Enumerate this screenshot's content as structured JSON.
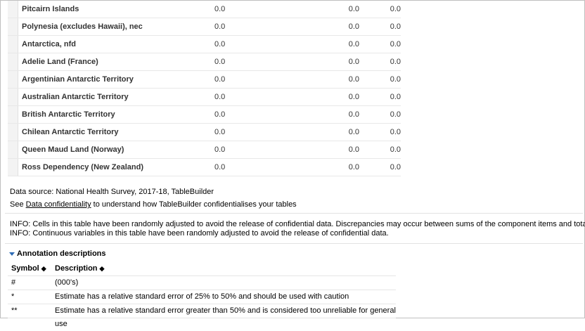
{
  "rows": [
    {
      "label": "Pitcairn Islands",
      "c1": "0.0",
      "c2": "0.0",
      "c3": "0.0"
    },
    {
      "label": "Polynesia (excludes Hawaii), nec",
      "c1": "0.0",
      "c2": "0.0",
      "c3": "0.0"
    },
    {
      "label": "Antarctica, nfd",
      "c1": "0.0",
      "c2": "0.0",
      "c3": "0.0"
    },
    {
      "label": "Adelie Land (France)",
      "c1": "0.0",
      "c2": "0.0",
      "c3": "0.0"
    },
    {
      "label": "Argentinian Antarctic Territory",
      "c1": "0.0",
      "c2": "0.0",
      "c3": "0.0"
    },
    {
      "label": "Australian Antarctic Territory",
      "c1": "0.0",
      "c2": "0.0",
      "c3": "0.0"
    },
    {
      "label": "British Antarctic Territory",
      "c1": "0.0",
      "c2": "0.0",
      "c3": "0.0"
    },
    {
      "label": "Chilean Antarctic Territory",
      "c1": "0.0",
      "c2": "0.0",
      "c3": "0.0"
    },
    {
      "label": "Queen Maud Land (Norway)",
      "c1": "0.0",
      "c2": "0.0",
      "c3": "0.0"
    },
    {
      "label": "Ross Dependency (New Zealand)",
      "c1": "0.0",
      "c2": "0.0",
      "c3": "0.0"
    }
  ],
  "footer": {
    "data_source": "Data source: National Health Survey, 2017-18, TableBuilder",
    "see_prefix": "See ",
    "see_link": "Data confidentiality",
    "see_suffix": " to understand how TableBuilder confidentialises your tables",
    "info1": "INFO: Cells in this table have been randomly adjusted to avoid the release of confidential data. Discrepancies may occur between sums of the component items and totals.",
    "info2": "INFO: Continuous variables in this table have been randomly adjusted to avoid the release of confidential data."
  },
  "annotations": {
    "heading": "Annotation descriptions",
    "col_symbol": "Symbol",
    "col_description": "Description",
    "sort_glyph": "◆",
    "items": [
      {
        "symbol": "#",
        "description": "(000's)"
      },
      {
        "symbol": "*",
        "description": "Estimate has a relative standard error of 25% to 50% and should be used with caution"
      },
      {
        "symbol": "**",
        "description": "Estimate has a relative standard error greater than 50% and is considered too unreliable for general use"
      }
    ]
  },
  "colors": {
    "toggle_accent": "#2d6bb5",
    "gutter": "#f3f3f3"
  }
}
